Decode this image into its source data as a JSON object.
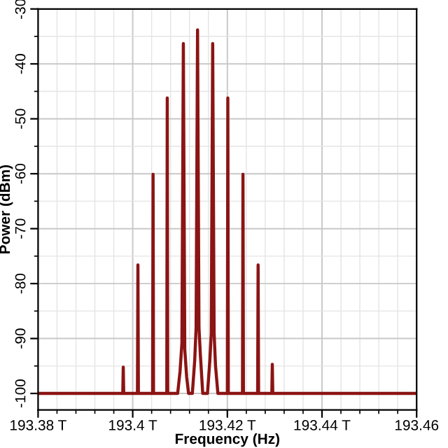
{
  "chart_data": {
    "type": "line",
    "xlabel": "Frequency (Hz)",
    "ylabel": "Power (dBm)",
    "series": [
      {
        "color": "#8b1414",
        "x": [
          193.38,
          193.3979,
          193.398,
          193.3981,
          193.401,
          193.4011,
          193.4012,
          193.4042,
          193.4043,
          193.4044,
          193.4072,
          193.4073,
          193.4074,
          193.4095,
          193.41,
          193.4104,
          193.4107,
          193.411,
          193.4114,
          193.4118,
          193.4126,
          193.4131,
          193.4134,
          193.4137,
          193.414,
          193.4143,
          193.4148,
          193.4158,
          193.4163,
          193.4166,
          193.4169,
          193.4172,
          193.4175,
          193.418,
          193.42,
          193.4201,
          193.4202,
          193.4232,
          193.4233,
          193.4234,
          193.4264,
          193.4265,
          193.4266,
          193.4294,
          193.4295,
          193.4296,
          193.46
        ],
        "values": [
          -100,
          -100,
          -95.2,
          -100,
          -100,
          -76.6,
          -100,
          -100,
          -60.1,
          -100,
          -100,
          -46.2,
          -100,
          -100,
          -96,
          -90.8,
          -36.3,
          -92,
          -97,
          -100,
          -100,
          -94,
          -88,
          -33.8,
          -88,
          -93,
          -100,
          -100,
          -94,
          -89,
          -36.3,
          -89,
          -95,
          -100,
          -100,
          -46.2,
          -100,
          -100,
          -60.1,
          -100,
          -100,
          -76.6,
          -100,
          -100,
          -94.7,
          -100,
          -100
        ]
      }
    ],
    "xlim": [
      193.38,
      193.46
    ],
    "ylim": [
      -103,
      -30
    ],
    "xticks": [
      {
        "value": 193.38,
        "label": "193.38 T"
      },
      {
        "value": 193.4,
        "label": "193.4 T"
      },
      {
        "value": 193.42,
        "label": "193.42 T"
      },
      {
        "value": 193.44,
        "label": "193.44 T"
      },
      {
        "value": 193.46,
        "label": "193.46"
      }
    ],
    "yticks": [
      -100,
      -90,
      -80,
      -70,
      -60,
      -50,
      -40,
      -30
    ],
    "grid": true,
    "legend": false,
    "marker": "none",
    "line_style": "solid"
  }
}
